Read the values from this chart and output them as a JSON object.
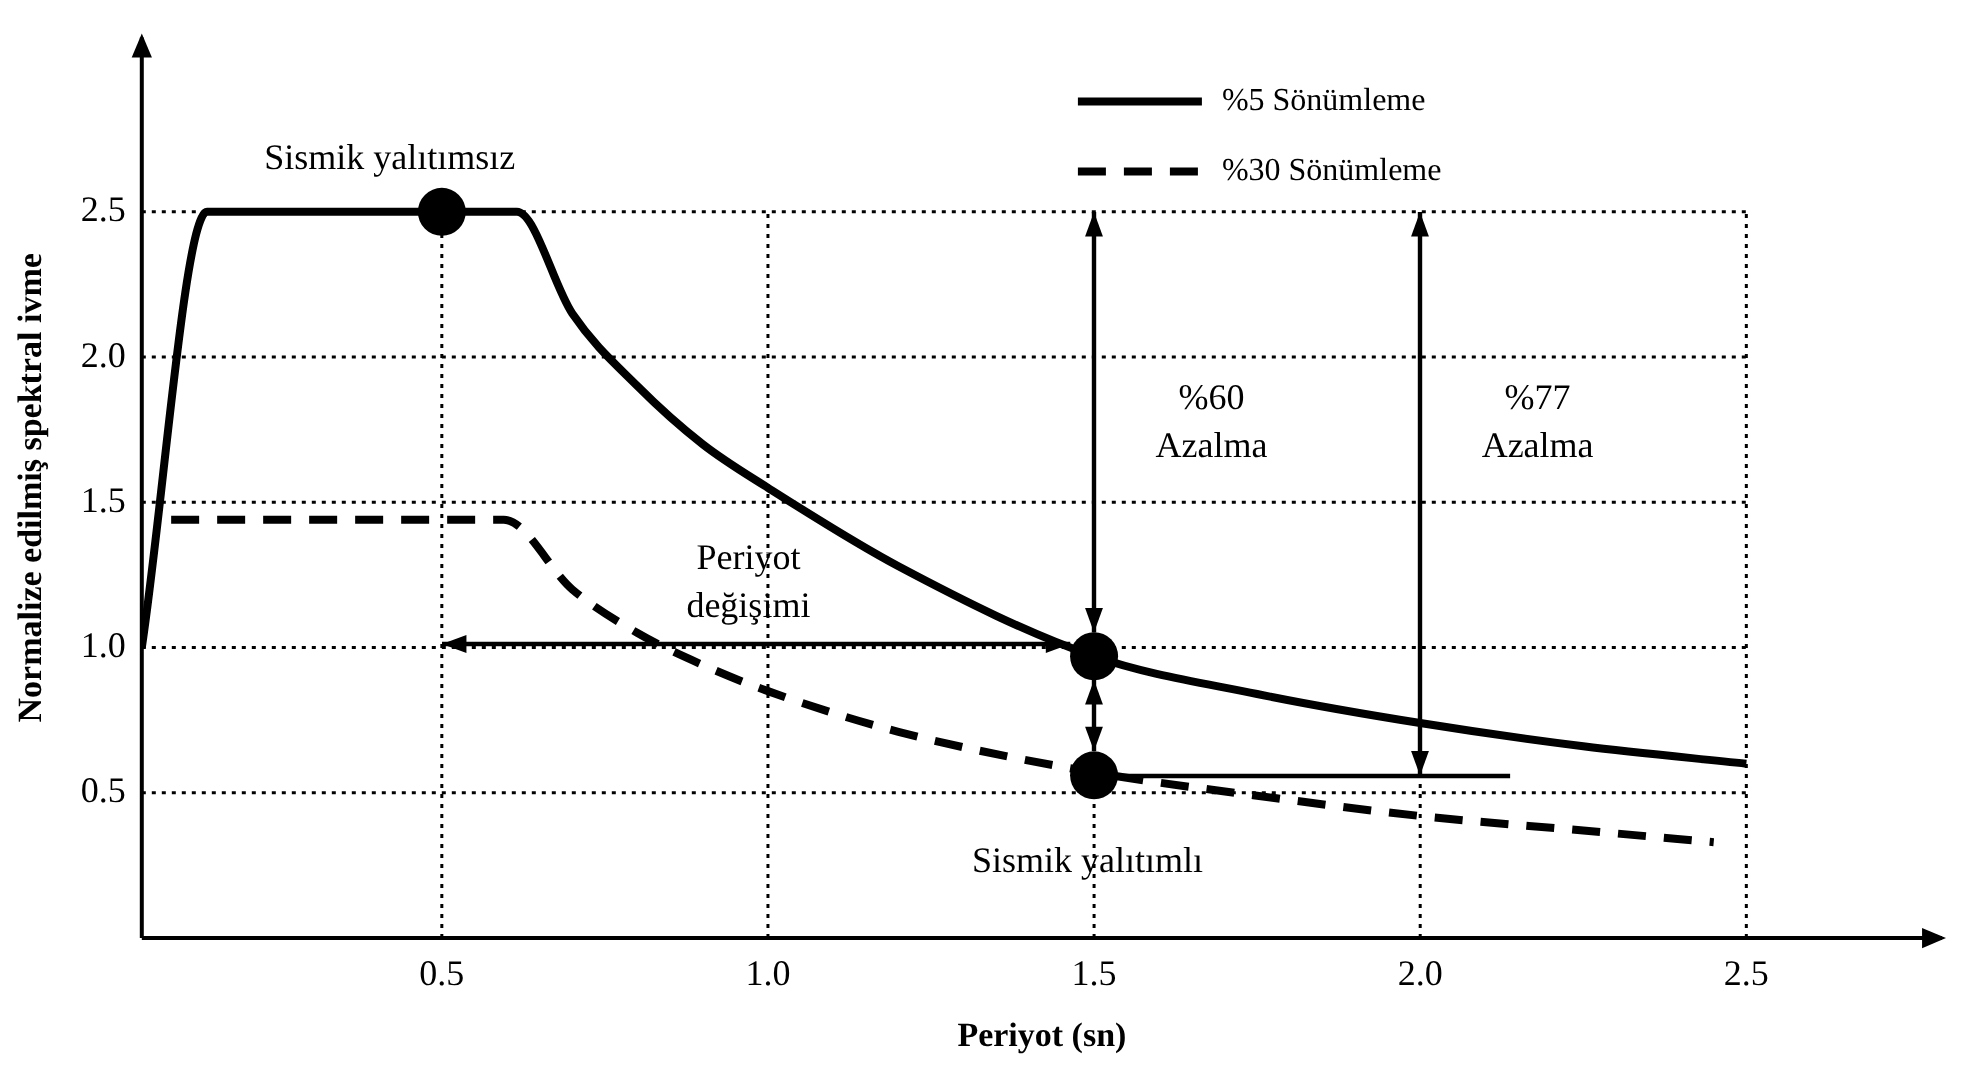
{
  "chart_data": {
    "type": "line",
    "xlabel": "Periyot (sn)",
    "ylabel": "Normalize edilmiş spektral ivme",
    "xlim": [
      0.04,
      2.8
    ],
    "ylim": [
      0,
      3.1
    ],
    "xticks": [
      0.5,
      {
        "value": 1,
        "label": "1.0"
      },
      1.5,
      {
        "value": 2,
        "label": "2.0"
      },
      2.5
    ],
    "yticks": [
      0.5,
      {
        "value": 1,
        "label": "1.0"
      },
      1.5,
      {
        "value": 2,
        "label": "2.0"
      },
      2.5
    ],
    "grid": true,
    "legend": "top right",
    "marker": "none",
    "series": [
      {
        "name": "%5 Sönümleme",
        "color": "#000000",
        "line_style": "solid",
        "x": [
          0.04,
          0.14,
          0.615,
          0.7,
          0.8,
          0.9,
          1.0,
          1.2,
          1.5,
          1.75,
          2.0,
          2.25,
          2.5
        ],
        "values": [
          1.0,
          2.5,
          2.5,
          2.15,
          1.9,
          1.7,
          1.55,
          1.28,
          0.97,
          0.84,
          0.74,
          0.66,
          0.6
        ]
      },
      {
        "name": "%30 Sönümleme",
        "color": "#000000",
        "line_style": "dashed",
        "x": [
          0.085,
          0.595,
          0.7,
          0.8,
          0.9,
          1.0,
          1.2,
          1.5,
          1.75,
          2.0,
          2.25,
          2.45
        ],
        "values": [
          1.44,
          1.44,
          1.2,
          1.05,
          0.94,
          0.85,
          0.71,
          0.57,
          0.49,
          0.42,
          0.37,
          0.33
        ]
      },
      {
        "type": "scatter",
        "color": "#000000",
        "marker": "circle",
        "x": [
          0.5,
          1.5,
          1.5
        ],
        "values": [
          2.5,
          0.97,
          0.56
        ]
      }
    ],
    "annotations": [
      "Sismik yalıtımsız",
      "Periyot\ndeğişimi",
      "%60\nAzalma",
      "%77\nAzalma",
      "Sismik yalıtımlı"
    ]
  }
}
